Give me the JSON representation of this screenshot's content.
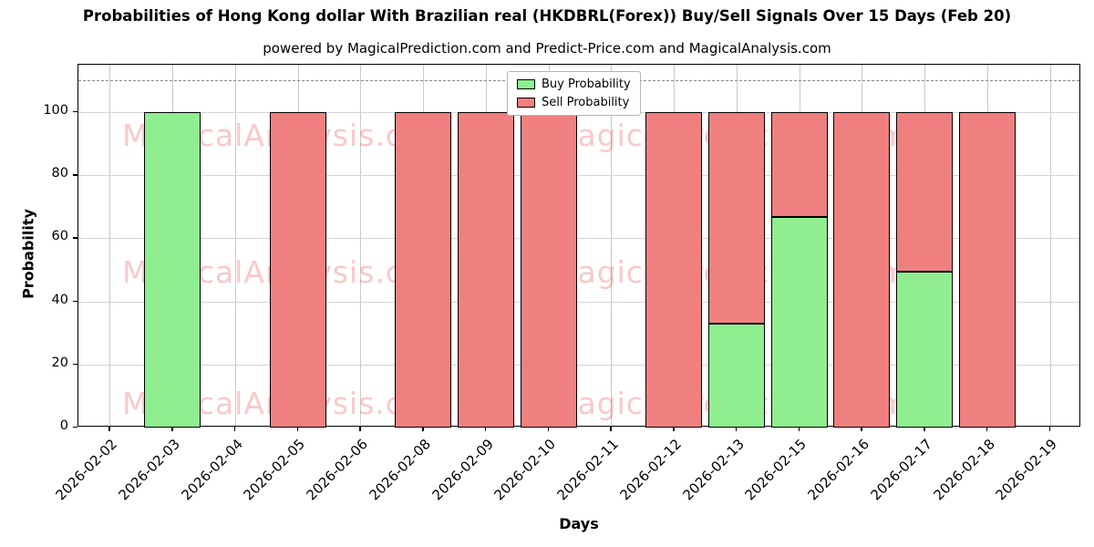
{
  "title": "Probabilities of Hong Kong dollar With Brazilian real (HKDBRL(Forex)) Buy/Sell Signals Over 15 Days (Feb 20)",
  "subtitle": "powered by MagicalPrediction.com and Predict-Price.com and MagicalAnalysis.com",
  "xlabel": "Days",
  "ylabel": "Probability",
  "watermarks": {
    "left_text": "MagicalAnalysis.com",
    "right_text": "MagicalPrediction.com",
    "rows": 3
  },
  "legend": {
    "items": [
      {
        "label": "Buy Probability",
        "color": "#90EE90"
      },
      {
        "label": "Sell Probability",
        "color": "#F08080"
      }
    ]
  },
  "chart_data": {
    "type": "bar",
    "stacked": true,
    "title": "Probabilities of Hong Kong dollar With Brazilian real (HKDBRL(Forex)) Buy/Sell Signals Over 15 Days (Feb 20)",
    "xlabel": "Days",
    "ylabel": "Probability",
    "categories": [
      "2026-02-02",
      "2026-02-03",
      "2026-02-04",
      "2026-02-05",
      "2026-02-06",
      "2026-02-08",
      "2026-02-09",
      "2026-02-10",
      "2026-02-11",
      "2026-02-12",
      "2026-02-13",
      "2026-02-15",
      "2026-02-16",
      "2026-02-17",
      "2026-02-18",
      "2026-02-19"
    ],
    "series": [
      {
        "name": "Buy Probability",
        "color": "#90EE90",
        "values": [
          0,
          100,
          0,
          0,
          0,
          0,
          0,
          0,
          0,
          0,
          33,
          66.7,
          0,
          49.5,
          0,
          0
        ]
      },
      {
        "name": "Sell Probability",
        "color": "#F08080",
        "values": [
          0,
          0,
          0,
          100,
          0,
          100,
          100,
          100,
          0,
          100,
          67,
          33.3,
          100,
          50.5,
          100,
          0
        ]
      }
    ],
    "ylim": [
      0,
      115
    ],
    "yticks": [
      0,
      20,
      40,
      60,
      80,
      100
    ],
    "dashed_line_y": 110,
    "grid": true,
    "legend_position": "upper center"
  }
}
